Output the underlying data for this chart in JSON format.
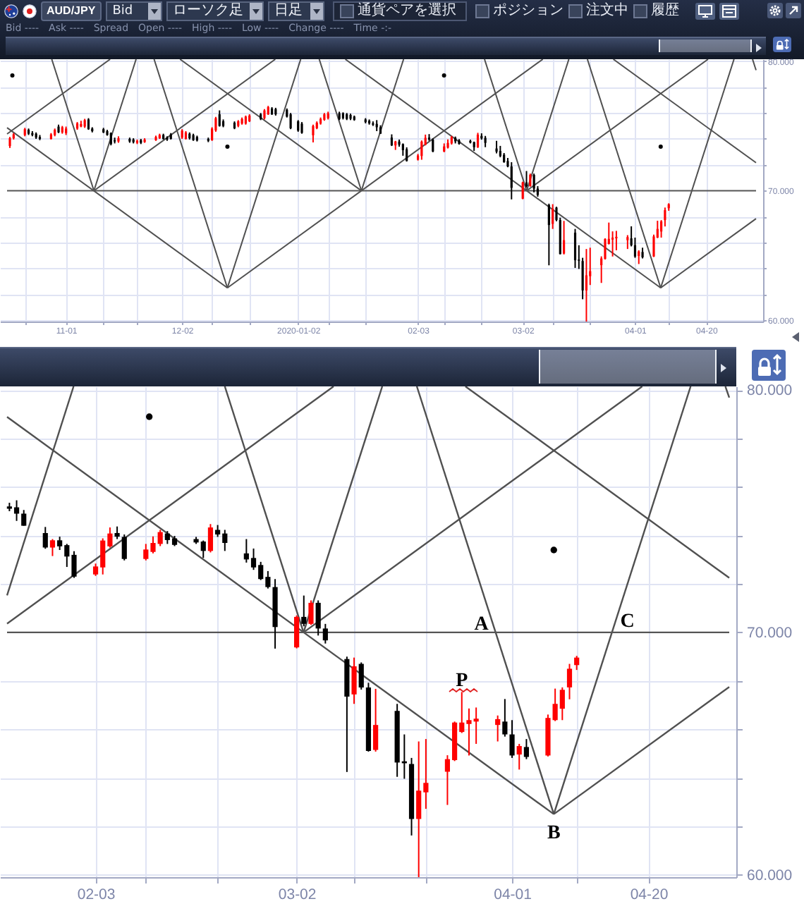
{
  "chart_data": [
    {
      "type": "other",
      "annotations": [
        "AUD/JPY",
        "Bid",
        "ローソク足",
        "日足",
        "通貨ペアを選択",
        "ポジション",
        "注文中",
        "履歴",
        "Bid ----",
        "Ask ----",
        "Spread",
        "Open ----",
        "High ----",
        "Low ----",
        "Change ----",
        "Time -:-"
      ]
    },
    {
      "type": "candlestick",
      "x": [
        "2019-10-17",
        "2019-10-18",
        "2019-10-21",
        "2019-10-22",
        "2019-10-23",
        "2019-10-24",
        "2019-10-25",
        "2019-10-28",
        "2019-10-29",
        "2019-10-30",
        "2019-10-31",
        "2019-11-01",
        "2019-11-04",
        "2019-11-05",
        "2019-11-06",
        "2019-11-07",
        "2019-11-08",
        "2019-11-11",
        "2019-11-12",
        "2019-11-13",
        "2019-11-14",
        "2019-11-15",
        "2019-11-18",
        "2019-11-19",
        "2019-11-20",
        "2019-11-21",
        "2019-11-22",
        "2019-11-25",
        "2019-11-26",
        "2019-11-27",
        "2019-11-28",
        "2019-11-29",
        "2019-12-02",
        "2019-12-03",
        "2019-12-04",
        "2019-12-05",
        "2019-12-06",
        "2019-12-09",
        "2019-12-10",
        "2019-12-11",
        "2019-12-12",
        "2019-12-13",
        "2019-12-16",
        "2019-12-17",
        "2019-12-18",
        "2019-12-19",
        "2019-12-20",
        "2019-12-23",
        "2019-12-24",
        "2019-12-25",
        "2019-12-26",
        "2019-12-27",
        "2019-12-30",
        "2019-12-31",
        "2020-01-02",
        "2020-01-03",
        "2020-01-06",
        "2020-01-07",
        "2020-01-08",
        "2020-01-09",
        "2020-01-10",
        "2020-01-13",
        "2020-01-14",
        "2020-01-15",
        "2020-01-16",
        "2020-01-17",
        "2020-01-20",
        "2020-01-21",
        "2020-01-22",
        "2020-01-23",
        "2020-01-24",
        "2020-01-27",
        "2020-01-28",
        "2020-01-29",
        "2020-01-30",
        "2020-01-31",
        "2020-02-03",
        "2020-02-04",
        "2020-02-05",
        "2020-02-06",
        "2020-02-07",
        "2020-02-10",
        "2020-02-11",
        "2020-02-12",
        "2020-02-13",
        "2020-02-14",
        "2020-02-17",
        "2020-02-18",
        "2020-02-19",
        "2020-02-20",
        "2020-02-21",
        "2020-02-24",
        "2020-02-25",
        "2020-02-26",
        "2020-02-27",
        "2020-02-28",
        "2020-03-02",
        "2020-03-03",
        "2020-03-04",
        "2020-03-05",
        "2020-03-06",
        "2020-03-09",
        "2020-03-10",
        "2020-03-11",
        "2020-03-12",
        "2020-03-13",
        "2020-03-16",
        "2020-03-17",
        "2020-03-18",
        "2020-03-19",
        "2020-03-20",
        "2020-03-23",
        "2020-03-24",
        "2020-03-25",
        "2020-03-26",
        "2020-03-27",
        "2020-03-30",
        "2020-03-31",
        "2020-04-01",
        "2020-04-02",
        "2020-04-03",
        "2020-04-06",
        "2020-04-07",
        "2020-04-08",
        "2020-04-09",
        "2020-04-10"
      ],
      "ohlc": [
        [
          73.45,
          74.15,
          73.3,
          74.05
        ],
        [
          74.05,
          74.45,
          73.95,
          74.35
        ],
        [
          74.3,
          74.85,
          74.2,
          74.75
        ],
        [
          74.7,
          74.8,
          74.3,
          74.4
        ],
        [
          74.45,
          74.6,
          74.2,
          74.3
        ],
        [
          74.4,
          74.5,
          74.0,
          74.1
        ],
        [
          74.15,
          74.3,
          73.9,
          74.0
        ],
        [
          74.0,
          74.45,
          73.95,
          74.35
        ],
        [
          74.3,
          74.8,
          74.2,
          74.7
        ],
        [
          74.95,
          75.1,
          74.45,
          74.5
        ],
        [
          74.5,
          75.0,
          74.4,
          74.9
        ],
        [
          74.45,
          74.95,
          74.3,
          74.8
        ],
        [
          74.8,
          75.3,
          74.7,
          75.2
        ],
        [
          74.95,
          75.4,
          74.9,
          75.15
        ],
        [
          74.95,
          75.55,
          74.85,
          75.45
        ],
        [
          75.5,
          75.6,
          74.7,
          74.75
        ],
        [
          74.8,
          74.9,
          74.5,
          74.6
        ],
        [
          74.75,
          74.85,
          74.45,
          74.5
        ],
        [
          74.6,
          74.7,
          74.25,
          74.3
        ],
        [
          74.45,
          74.5,
          73.5,
          73.6
        ],
        [
          73.9,
          74.1,
          73.65,
          73.8
        ],
        [
          73.8,
          74.2,
          73.7,
          74.05
        ],
        [
          74.0,
          74.1,
          73.7,
          73.8
        ],
        [
          73.95,
          74.05,
          73.65,
          73.75
        ],
        [
          73.7,
          73.95,
          73.6,
          73.85
        ],
        [
          73.9,
          74.0,
          73.6,
          73.7
        ],
        [
          73.75,
          74.05,
          73.7,
          73.95
        ],
        [
          73.9,
          74.25,
          73.85,
          74.15
        ],
        [
          74.05,
          74.4,
          74.0,
          74.3
        ],
        [
          74.3,
          74.4,
          73.95,
          74.0
        ],
        [
          74.1,
          74.2,
          73.85,
          73.95
        ],
        [
          74.35,
          74.45,
          73.95,
          74.0
        ],
        [
          74.1,
          74.75,
          74.0,
          74.64
        ],
        [
          74.0,
          74.6,
          73.95,
          74.5
        ],
        [
          74.4,
          74.5,
          73.95,
          74.05
        ],
        [
          74.3,
          74.4,
          73.85,
          73.9
        ],
        [
          74.15,
          74.25,
          73.8,
          73.88
        ],
        [
          74.0,
          74.1,
          73.75,
          73.85
        ],
        [
          73.9,
          74.9,
          73.85,
          74.8
        ],
        [
          74.65,
          75.7,
          74.55,
          75.6
        ],
        [
          75.9,
          76.2,
          74.95,
          75.0
        ],
        [
          75.36,
          75.5,
          74.9,
          75.0
        ],
        [
          75.25,
          75.35,
          74.75,
          74.82
        ],
        [
          75.0,
          75.45,
          74.9,
          75.36
        ],
        [
          75.18,
          75.65,
          75.1,
          75.54
        ],
        [
          75.18,
          75.8,
          75.1,
          75.72
        ],
        [
          75.36,
          75.9,
          75.3,
          75.8
        ],
        [
          75.9,
          76.0,
          75.45,
          75.54
        ],
        [
          75.6,
          76.3,
          75.5,
          76.2
        ],
        [
          75.9,
          76.55,
          75.85,
          76.45
        ],
        [
          76.35,
          76.45,
          75.85,
          75.9
        ],
        [
          76.3,
          76.4,
          75.8,
          75.9
        ],
        [
          76.25,
          76.35,
          75.65,
          75.72
        ],
        [
          75.9,
          76.0,
          74.75,
          74.82
        ],
        [
          75.36,
          75.45,
          74.55,
          74.64
        ],
        [
          75.18,
          75.3,
          74.4,
          74.46
        ],
        [
          74.28,
          75.1,
          73.73,
          75.0
        ],
        [
          74.82,
          75.35,
          74.75,
          75.25
        ],
        [
          75.18,
          75.65,
          75.1,
          75.54
        ],
        [
          75.47,
          76.0,
          75.4,
          75.9
        ],
        [
          75.6,
          76.1,
          75.5,
          75.98
        ],
        [
          75.98,
          76.1,
          75.45,
          75.54
        ],
        [
          75.98,
          76.05,
          75.5,
          75.6
        ],
        [
          75.9,
          76.0,
          75.45,
          75.54
        ],
        [
          75.85,
          75.95,
          75.45,
          75.55
        ],
        [
          75.72,
          75.8,
          75.4,
          75.47
        ],
        [
          75.5,
          75.6,
          75.2,
          75.3
        ],
        [
          75.4,
          75.5,
          75.1,
          75.2
        ],
        [
          75.2,
          75.35,
          75.0,
          75.1
        ],
        [
          75.16,
          75.45,
          74.6,
          74.9
        ],
        [
          74.9,
          75.05,
          74.4,
          74.4
        ],
        [
          74.1,
          74.35,
          73.45,
          73.5
        ],
        [
          73.5,
          73.85,
          73.15,
          73.8
        ],
        [
          73.8,
          73.95,
          73.4,
          73.55
        ],
        [
          73.6,
          73.65,
          72.7,
          73.13
        ],
        [
          73.2,
          73.35,
          72.25,
          72.3
        ],
        [
          72.39,
          72.84,
          72.33,
          72.72
        ],
        [
          72.68,
          73.88,
          72.39,
          73.79
        ],
        [
          73.55,
          74.33,
          73.5,
          74.08
        ],
        [
          74.1,
          74.37,
          73.85,
          73.95
        ],
        [
          73.94,
          74.04,
          72.97,
          73.03
        ],
        [
          73.03,
          73.65,
          72.97,
          73.42
        ],
        [
          73.32,
          73.96,
          73.26,
          73.69
        ],
        [
          73.65,
          74.23,
          73.56,
          74.14
        ],
        [
          74.08,
          74.18,
          73.65,
          73.81
        ],
        [
          73.88,
          73.98,
          73.56,
          73.61
        ],
        [
          73.85,
          73.94,
          73.65,
          73.71
        ],
        [
          73.75,
          73.79,
          73.07,
          73.36
        ],
        [
          73.36,
          74.47,
          73.3,
          74.33
        ],
        [
          74.23,
          74.43,
          73.94,
          74.04
        ],
        [
          74.08,
          74.23,
          73.36,
          73.69
        ],
        [
          73.26,
          73.85,
          72.88,
          73.01
        ],
        [
          73.07,
          73.46,
          72.58,
          72.68
        ],
        [
          72.78,
          72.91,
          72.16,
          72.2
        ],
        [
          72.29,
          72.53,
          71.81,
          71.87
        ],
        [
          71.87,
          72.2,
          69.33,
          70.22
        ],
        [
          69.38,
          70.7,
          69.34,
          70.64
        ],
        [
          70.64,
          71.52,
          70.25,
          70.35
        ],
        [
          70.35,
          71.32,
          70.31,
          71.22
        ],
        [
          71.22,
          71.32,
          69.87,
          70.16
        ],
        [
          70.16,
          70.35,
          69.54,
          69.67
        ],
        [
          68.9,
          69.0,
          64.24,
          67.35
        ],
        [
          67.44,
          68.96,
          67.05,
          68.6
        ],
        [
          68.7,
          68.76,
          67.64,
          67.73
        ],
        [
          67.73,
          67.92,
          65.08,
          65.11
        ],
        [
          65.15,
          67.67,
          65.08,
          66.18
        ],
        [
          66.76,
          67.05,
          64.04,
          64.63
        ],
        [
          64.68,
          65.79,
          63.96,
          64.6
        ],
        [
          64.57,
          64.82,
          61.62,
          62.3
        ],
        [
          62.3,
          65.5,
          59.9,
          63.47
        ],
        [
          63.4,
          65.6,
          62.72,
          63.79
        ],
        [
          64.25,
          64.93,
          62.88,
          64.77
        ],
        [
          64.73,
          66.32,
          64.69,
          66.28
        ],
        [
          65.89,
          67.54,
          65.85,
          66.28
        ],
        [
          66.22,
          66.86,
          64.92,
          66.38
        ],
        [
          66.32,
          66.9,
          65.4,
          66.44
        ],
        [
          66.18,
          66.57,
          65.5,
          66.42
        ],
        [
          66.32,
          67.25,
          65.7,
          65.79
        ],
        [
          65.79,
          66.38,
          64.82,
          64.92
        ],
        [
          64.96,
          65.4,
          64.34,
          65.31
        ],
        [
          65.27,
          65.6,
          64.77,
          64.86
        ],
        [
          64.92,
          66.61,
          64.88,
          66.47
        ],
        [
          66.38,
          67.68,
          66.34,
          67.05
        ],
        [
          66.85,
          67.73,
          66.38,
          67.63
        ],
        [
          67.73,
          68.7,
          67.24,
          68.5
        ],
        [
          68.65,
          69.03,
          68.45,
          68.96
        ]
      ],
      "colors": [
        "#ff0000",
        "#ff0000",
        "#ff0000",
        "#000000",
        "#000000",
        "#000000",
        "#000000",
        "#ff0000",
        "#ff0000",
        "#000000",
        "#ff0000",
        "#ff0000",
        "#ff0000",
        "#ff0000",
        "#ff0000",
        "#000000",
        "#000000",
        "#000000",
        "#000000",
        "#000000",
        "#000000",
        "#ff0000",
        "#000000",
        "#000000",
        "#ff0000",
        "#000000",
        "#ff0000",
        "#ff0000",
        "#ff0000",
        "#000000",
        "#000000",
        "#000000",
        "#ff0000",
        "#ff0000",
        "#000000",
        "#000000",
        "#000000",
        "#000000",
        "#ff0000",
        "#ff0000",
        "#000000",
        "#000000",
        "#000000",
        "#ff0000",
        "#ff0000",
        "#ff0000",
        "#ff0000",
        "#000000",
        "#ff0000",
        "#ff0000",
        "#000000",
        "#000000",
        "#000000",
        "#000000",
        "#000000",
        "#000000",
        "#ff0000",
        "#ff0000",
        "#ff0000",
        "#ff0000",
        "#ff0000",
        "#000000",
        "#000000",
        "#000000",
        "#000000",
        "#000000",
        "#000000",
        "#000000",
        "#000000",
        "#000000",
        "#000000",
        "#000000",
        "#ff0000",
        "#000000",
        "#000000",
        "#000000",
        "#ff0000",
        "#ff0000",
        "#ff0000",
        "#000000",
        "#000000",
        "#ff0000",
        "#ff0000",
        "#ff0000",
        "#000000",
        "#000000",
        "#000000",
        "#000000",
        "#ff0000",
        "#000000",
        "#000000",
        "#000000",
        "#000000",
        "#000000",
        "#000000",
        "#000000",
        "#ff0000",
        "#000000",
        "#ff0000",
        "#000000",
        "#000000",
        "#000000",
        "#ff0000",
        "#000000",
        "#000000",
        "#ff0000",
        "#000000",
        "#000000",
        "#000000",
        "#ff0000",
        "#ff0000",
        "#ff0000",
        "#ff0000",
        "#ff0000",
        "#ff0000",
        "#ff0000",
        "#ff0000",
        "#000000",
        "#000000",
        "#ff0000",
        "#000000",
        "#ff0000",
        "#ff0000",
        "#ff0000",
        "#ff0000",
        "#ff0000"
      ],
      "series": [
        {
          "type": "line",
          "color": "#505050",
          "x": [
            "2019-10-28T04:29",
            "2019-11-08T10:51"
          ],
          "values": [
            80.15,
            70
          ]
        },
        {
          "type": "line",
          "color": "#505050",
          "x": [
            "2019-10-16T05:54",
            "2019-12-14T02:34"
          ],
          "values": [
            74.86,
            62.5
          ]
        },
        {
          "type": "line",
          "color": "#505050",
          "x": [
            "2019-10-16T05:54",
            "2019-11-12T18:41"
          ],
          "values": [
            74.38,
            80.15
          ]
        },
        {
          "type": "line",
          "color": "#505050",
          "x": [
            "2019-11-08T10:51",
            "2019-12-26T21:35"
          ],
          "values": [
            70,
            80.15
          ]
        },
        {
          "type": "line",
          "color": "#505050",
          "x": [
            "2019-11-08T10:51",
            "2019-11-19T17:07"
          ],
          "values": [
            70,
            80.15
          ]
        },
        {
          "type": "line",
          "color": "#505050",
          "x": [
            "2019-11-24T12:35",
            "2019-12-14T02:34"
          ],
          "values": [
            80.15,
            62.5
          ]
        },
        {
          "type": "line",
          "color": "#505050",
          "x": [
            "2019-12-14T02:34",
            "2020-01-02T16:32"
          ],
          "values": [
            62.5,
            80.15
          ]
        },
        {
          "type": "line",
          "color": "#505050",
          "x": [
            "2019-12-14T02:34",
            "2020-03-07T08:27"
          ],
          "values": [
            62.5,
            80.15
          ]
        },
        {
          "type": "line",
          "color": "#505050",
          "x": [
            "2019-12-01T11:01",
            "2020-01-18T21:43"
          ],
          "values": [
            80.15,
            70
          ]
        },
        {
          "type": "line",
          "color": "#505050",
          "x": [
            "2020-01-07T15:22",
            "2020-01-18T21:43"
          ],
          "values": [
            80.15,
            70
          ]
        },
        {
          "type": "line",
          "color": "#505050",
          "x": [
            "2020-01-18T21:43",
            "2020-01-30T04:00"
          ],
          "values": [
            70,
            80.15
          ]
        },
        {
          "type": "line",
          "color": "#505050",
          "x": [
            "2020-01-14T14:30",
            "2020-04-07T20:23"
          ],
          "values": [
            80.15,
            62.5
          ]
        },
        {
          "type": "line",
          "color": "#505050",
          "x": [
            "2020-02-20T18:58",
            "2020-03-03T01:12"
          ],
          "values": [
            80.15,
            70
          ]
        },
        {
          "type": "line",
          "color": "#505050",
          "x": [
            "2020-03-03T01:12",
            "2020-03-14T07:35"
          ],
          "values": [
            70,
            80.15
          ]
        },
        {
          "type": "line",
          "color": "#505050",
          "x": [
            "2020-03-03T01:12",
            "2020-04-20T11:57"
          ],
          "values": [
            70,
            80.15
          ]
        },
        {
          "type": "line",
          "color": "#505050",
          "x": [
            "2020-03-19T06:26",
            "2020-04-07T20:23"
          ],
          "values": [
            80.15,
            62.5
          ]
        },
        {
          "type": "line",
          "color": "#505050",
          "x": [
            "2020-03-26T04:45",
            "2020-05-03T07:41"
          ],
          "values": [
            80.15,
            72.16
          ]
        },
        {
          "type": "line",
          "color": "#505050",
          "x": [
            "2020-04-07T20:23",
            "2020-04-27T10:22"
          ],
          "values": [
            62.5,
            80.15
          ]
        },
        {
          "type": "line",
          "color": "#505050",
          "x": [
            "2020-04-07T20:23",
            "2020-05-03T07:41"
          ],
          "values": [
            62.5,
            67.84
          ]
        },
        {
          "type": "line",
          "color": "#505050",
          "x": [
            "2020-05-02T09:13",
            "2020-05-03T07:41"
          ],
          "values": [
            80.15,
            79.31
          ]
        },
        {
          "type": "scatter",
          "color": "#000000",
          "marker": "circle",
          "x": [
            "2019-10-17T15:53",
            "2019-12-14T02:34",
            "2020-02-09T23:31",
            "2020-04-07T20:23"
          ],
          "values": [
            78.9,
            73.4,
            78.9,
            73.4
          ]
        }
      ],
      "ref_lines": [
        {
          "axis": "y",
          "value": 70,
          "color": "#555555"
        }
      ],
      "xlim": [
        "2019-10-16T05:54",
        "2020-05-03T07:41"
      ],
      "ylim": [
        59.9,
        80.15
      ],
      "xticks": [
        {
          "value": "2019-10-21",
          "label": null
        },
        {
          "value": "2019-11-01",
          "label": "11-01"
        },
        {
          "value": "2019-11-11",
          "label": null
        },
        {
          "value": "2019-11-20",
          "label": null
        },
        {
          "value": "2019-12-02",
          "label": "12-02"
        },
        {
          "value": "2019-12-10",
          "label": null
        },
        {
          "value": "2019-12-20",
          "label": null
        },
        {
          "value": "2020-01-02",
          "label": "2020-01-02"
        },
        {
          "value": "2020-01-10",
          "label": null
        },
        {
          "value": "2020-01-20",
          "label": null
        },
        {
          "value": "2020-02-03",
          "label": "02-03"
        },
        {
          "value": "2020-02-10",
          "label": null
        },
        {
          "value": "2020-02-20",
          "label": null
        },
        {
          "value": "2020-03-02",
          "label": "03-02"
        },
        {
          "value": "2020-03-10",
          "label": null
        },
        {
          "value": "2020-03-20",
          "label": null
        },
        {
          "value": "2020-04-01",
          "label": "04-01"
        },
        {
          "value": "2020-04-10",
          "label": null
        },
        {
          "value": "2020-04-20",
          "label": "04-20"
        }
      ],
      "yticks": [
        {
          "value": 60,
          "label": "60.000"
        },
        {
          "value": 62,
          "label": null
        },
        {
          "value": 64,
          "label": null
        },
        {
          "value": 66,
          "label": null
        },
        {
          "value": 68,
          "label": null
        },
        {
          "value": 70,
          "label": "70.000"
        },
        {
          "value": 72,
          "label": null
        },
        {
          "value": 74,
          "label": null
        },
        {
          "value": 76,
          "label": null
        },
        {
          "value": 78,
          "label": null
        },
        {
          "value": 80,
          "label": "80.000"
        }
      ],
      "grid": true
    },
    {
      "type": "candlestick",
      "x": [
        "2020-01-22",
        "2020-01-23",
        "2020-01-24",
        "2020-01-27",
        "2020-01-28",
        "2020-01-29",
        "2020-01-30",
        "2020-01-31",
        "2020-02-03",
        "2020-02-04",
        "2020-02-05",
        "2020-02-06",
        "2020-02-07",
        "2020-02-10",
        "2020-02-11",
        "2020-02-12",
        "2020-02-13",
        "2020-02-14",
        "2020-02-17",
        "2020-02-18",
        "2020-02-19",
        "2020-02-20",
        "2020-02-21",
        "2020-02-24",
        "2020-02-25",
        "2020-02-26",
        "2020-02-27",
        "2020-02-28",
        "2020-03-02",
        "2020-03-03",
        "2020-03-04",
        "2020-03-05",
        "2020-03-06",
        "2020-03-09",
        "2020-03-10",
        "2020-03-11",
        "2020-03-12",
        "2020-03-13",
        "2020-03-16",
        "2020-03-17",
        "2020-03-18",
        "2020-03-19",
        "2020-03-20",
        "2020-03-23",
        "2020-03-24",
        "2020-03-25",
        "2020-03-26",
        "2020-03-27",
        "2020-03-30",
        "2020-03-31",
        "2020-04-01",
        "2020-04-02",
        "2020-04-03",
        "2020-04-06",
        "2020-04-07",
        "2020-04-08",
        "2020-04-09",
        "2020-04-10"
      ],
      "ohlc": [
        [
          75.2,
          75.35,
          75.0,
          75.1
        ],
        [
          75.16,
          75.45,
          74.6,
          74.9
        ],
        [
          74.9,
          75.05,
          74.4,
          74.4
        ],
        [
          74.1,
          74.35,
          73.45,
          73.5
        ],
        [
          73.5,
          73.85,
          73.15,
          73.8
        ],
        [
          73.8,
          73.95,
          73.4,
          73.55
        ],
        [
          73.6,
          73.65,
          72.7,
          73.13
        ],
        [
          73.2,
          73.35,
          72.25,
          72.3
        ],
        [
          72.39,
          72.84,
          72.33,
          72.72
        ],
        [
          72.68,
          73.88,
          72.39,
          73.79
        ],
        [
          73.55,
          74.33,
          73.5,
          74.08
        ],
        [
          74.1,
          74.37,
          73.85,
          73.95
        ],
        [
          73.94,
          74.04,
          72.97,
          73.03
        ],
        [
          73.03,
          73.65,
          72.97,
          73.42
        ],
        [
          73.32,
          73.96,
          73.26,
          73.69
        ],
        [
          73.65,
          74.23,
          73.56,
          74.14
        ],
        [
          74.08,
          74.18,
          73.65,
          73.81
        ],
        [
          73.88,
          73.98,
          73.56,
          73.61
        ],
        [
          73.85,
          73.94,
          73.65,
          73.71
        ],
        [
          73.75,
          73.79,
          73.07,
          73.36
        ],
        [
          73.36,
          74.47,
          73.3,
          74.33
        ],
        [
          74.23,
          74.43,
          73.94,
          74.04
        ],
        [
          74.08,
          74.23,
          73.36,
          73.69
        ],
        [
          73.26,
          73.85,
          72.88,
          73.01
        ],
        [
          73.07,
          73.46,
          72.58,
          72.68
        ],
        [
          72.78,
          72.91,
          72.16,
          72.2
        ],
        [
          72.29,
          72.53,
          71.81,
          71.87
        ],
        [
          71.87,
          72.2,
          69.33,
          70.22
        ],
        [
          69.38,
          70.7,
          69.34,
          70.64
        ],
        [
          70.64,
          71.52,
          70.25,
          70.35
        ],
        [
          70.35,
          71.32,
          70.31,
          71.22
        ],
        [
          71.22,
          71.32,
          69.87,
          70.16
        ],
        [
          70.16,
          70.35,
          69.54,
          69.67
        ],
        [
          68.9,
          69.0,
          64.24,
          67.35
        ],
        [
          67.44,
          68.96,
          67.05,
          68.6
        ],
        [
          68.7,
          68.76,
          67.64,
          67.73
        ],
        [
          67.73,
          67.92,
          65.08,
          65.11
        ],
        [
          65.15,
          67.67,
          65.08,
          66.18
        ],
        [
          66.76,
          67.05,
          64.04,
          64.63
        ],
        [
          64.68,
          65.79,
          63.96,
          64.6
        ],
        [
          64.57,
          64.82,
          61.62,
          62.3
        ],
        [
          62.3,
          65.5,
          59.9,
          63.47
        ],
        [
          63.4,
          65.6,
          62.72,
          63.79
        ],
        [
          64.25,
          64.93,
          62.88,
          64.77
        ],
        [
          64.73,
          66.32,
          64.69,
          66.28
        ],
        [
          65.89,
          67.54,
          65.85,
          66.28
        ],
        [
          66.22,
          66.86,
          64.92,
          66.38
        ],
        [
          66.32,
          66.9,
          65.4,
          66.44
        ],
        [
          66.18,
          66.57,
          65.5,
          66.42
        ],
        [
          66.32,
          67.25,
          65.7,
          65.79
        ],
        [
          65.79,
          66.38,
          64.82,
          64.92
        ],
        [
          64.96,
          65.4,
          64.34,
          65.31
        ],
        [
          65.27,
          65.6,
          64.77,
          64.86
        ],
        [
          64.92,
          66.61,
          64.88,
          66.47
        ],
        [
          66.38,
          67.68,
          66.34,
          67.05
        ],
        [
          66.85,
          67.73,
          66.38,
          67.63
        ],
        [
          67.73,
          68.7,
          67.24,
          68.5
        ],
        [
          68.65,
          69.03,
          68.45,
          68.96
        ]
      ],
      "colors": [
        "#000000",
        "#000000",
        "#000000",
        "#000000",
        "#ff0000",
        "#000000",
        "#000000",
        "#000000",
        "#ff0000",
        "#ff0000",
        "#ff0000",
        "#000000",
        "#000000",
        "#ff0000",
        "#ff0000",
        "#ff0000",
        "#000000",
        "#000000",
        "#000000",
        "#000000",
        "#ff0000",
        "#000000",
        "#000000",
        "#000000",
        "#000000",
        "#000000",
        "#000000",
        "#000000",
        "#ff0000",
        "#000000",
        "#ff0000",
        "#000000",
        "#000000",
        "#000000",
        "#ff0000",
        "#000000",
        "#000000",
        "#ff0000",
        "#000000",
        "#000000",
        "#000000",
        "#ff0000",
        "#ff0000",
        "#ff0000",
        "#ff0000",
        "#ff0000",
        "#ff0000",
        "#ff0000",
        "#ff0000",
        "#000000",
        "#000000",
        "#ff0000",
        "#000000",
        "#ff0000",
        "#ff0000",
        "#ff0000",
        "#ff0000",
        "#ff0000"
      ],
      "series": [
        {
          "type": "line",
          "color": "#505050",
          "x": [
            "2020-01-21T16:03",
            "2020-01-30T22:28"
          ],
          "values": [
            71.53,
            80.15
          ]
        },
        {
          "type": "line",
          "color": "#505050",
          "x": [
            "2020-01-21T16:03",
            "2020-03-07T03:23"
          ],
          "values": [
            70.36,
            80.15
          ]
        },
        {
          "type": "line",
          "color": "#505050",
          "x": [
            "2020-01-21T16:03",
            "2020-04-06T19:34"
          ],
          "values": [
            78.89,
            62.5
          ]
        },
        {
          "type": "line",
          "color": "#505050",
          "x": [
            "2020-02-20T23:54",
            "2020-03-02T23:02"
          ],
          "values": [
            80.15,
            70
          ]
        },
        {
          "type": "line",
          "color": "#505050",
          "x": [
            "2020-03-02T23:02",
            "2020-03-13T22:09"
          ],
          "values": [
            70,
            80.15
          ]
        },
        {
          "type": "line",
          "color": "#505050",
          "x": [
            "2020-03-02T23:02",
            "2020-04-19T03:03"
          ],
          "values": [
            70,
            80.15
          ]
        },
        {
          "type": "line",
          "color": "#505050",
          "x": [
            "2020-03-18T17:46",
            "2020-04-06T19:34"
          ],
          "values": [
            80.15,
            62.5
          ]
        },
        {
          "type": "line",
          "color": "#505050",
          "x": [
            "2020-03-25T12:04",
            "2020-05-01T05:56"
          ],
          "values": [
            80.15,
            72.25
          ]
        },
        {
          "type": "line",
          "color": "#505050",
          "x": [
            "2020-04-06T19:34",
            "2020-04-25T20:54"
          ],
          "values": [
            62.5,
            80.15
          ]
        },
        {
          "type": "line",
          "color": "#505050",
          "x": [
            "2020-04-06T19:34",
            "2020-05-01T05:56"
          ],
          "values": [
            62.5,
            67.75
          ]
        },
        {
          "type": "line",
          "color": "#505050",
          "x": [
            "2020-04-30T16:58",
            "2020-05-01T05:56"
          ],
          "values": [
            80.15,
            79.69
          ]
        },
        {
          "type": "scatter",
          "color": "#000000",
          "marker": "circle",
          "x": [
            "2020-02-10T11:25",
            "2020-04-06T19:34"
          ],
          "values": [
            78.9,
            73.4
          ]
        }
      ],
      "ref_lines": [
        {
          "axis": "y",
          "value": 70,
          "color": "#555555"
        }
      ],
      "annotations": [
        {
          "text": "A",
          "x": "2020-03-29T16:52",
          "y": 70
        },
        {
          "text": "B",
          "x": "2020-04-06T19:34",
          "y": 62.5
        },
        {
          "text": "C",
          "x": "2020-04-14T21:48",
          "y": 70
        },
        {
          "text": "P",
          "x": "2020-03-25",
          "y": 67.54
        }
      ],
      "xlim": [
        "2020-01-21T16:03",
        "2020-05-01T05:56"
      ],
      "ylim": [
        59.9,
        80.15
      ],
      "xticks": [
        {
          "value": "2020-02-03",
          "label": "02-03"
        },
        {
          "value": "2020-02-10",
          "label": null
        },
        {
          "value": "2020-02-20",
          "label": null
        },
        {
          "value": "2020-03-02",
          "label": "03-02"
        },
        {
          "value": "2020-03-10",
          "label": null
        },
        {
          "value": "2020-03-20",
          "label": null
        },
        {
          "value": "2020-04-01",
          "label": "04-01"
        },
        {
          "value": "2020-04-10",
          "label": null
        },
        {
          "value": "2020-04-20",
          "label": "04-20"
        }
      ],
      "yticks": [
        {
          "value": 60,
          "label": "60.000"
        },
        {
          "value": 62,
          "label": null
        },
        {
          "value": 64,
          "label": null
        },
        {
          "value": 66,
          "label": null
        },
        {
          "value": 68,
          "label": null
        },
        {
          "value": 70,
          "label": "70.000"
        },
        {
          "value": 72,
          "label": null
        },
        {
          "value": 74,
          "label": null
        },
        {
          "value": 76,
          "label": null
        },
        {
          "value": 78,
          "label": null
        },
        {
          "value": 80,
          "label": "80.000"
        }
      ],
      "grid": true
    }
  ]
}
